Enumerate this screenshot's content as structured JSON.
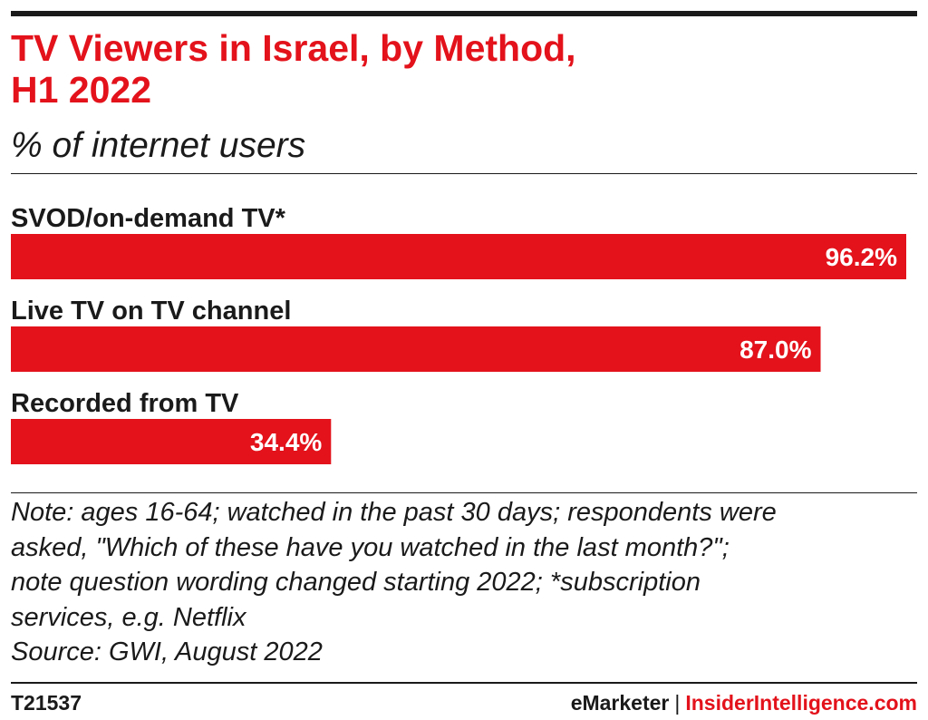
{
  "header": {
    "title_line1": "TV Viewers in Israel, by Method,",
    "title_line2": "H1 2022",
    "subtitle": "% of internet users"
  },
  "colors": {
    "accent": "#e3121b",
    "text": "#1a1a1a",
    "bar": "#e3121b",
    "label_inside": "#ffffff"
  },
  "chart_data": {
    "type": "bar",
    "orientation": "horizontal",
    "categories": [
      "SVOD/on-demand TV*",
      "Live TV on TV channel",
      "Recorded from TV"
    ],
    "values": [
      96.2,
      87.0,
      34.4
    ],
    "value_labels": [
      "96.2%",
      "87.0%",
      "34.4%"
    ],
    "title": "TV Viewers in Israel, by Method, H1 2022",
    "subtitle": "% of internet users",
    "xlim": [
      0,
      96.2
    ],
    "grid": false,
    "legend": "none"
  },
  "notes": {
    "lines": [
      "Note: ages 16-64; watched in the past 30 days; respondents were",
      "asked, \"Which of these have you watched in the last month?\";",
      "note question wording changed starting 2022; *subscription",
      "services, e.g. Netflix",
      "Source: GWI, August 2022"
    ]
  },
  "footer": {
    "chart_id": "T21537",
    "brand_emarketer": "eMarketer",
    "brand_separator": "|",
    "brand_insider": "InsiderIntelligence.com"
  }
}
